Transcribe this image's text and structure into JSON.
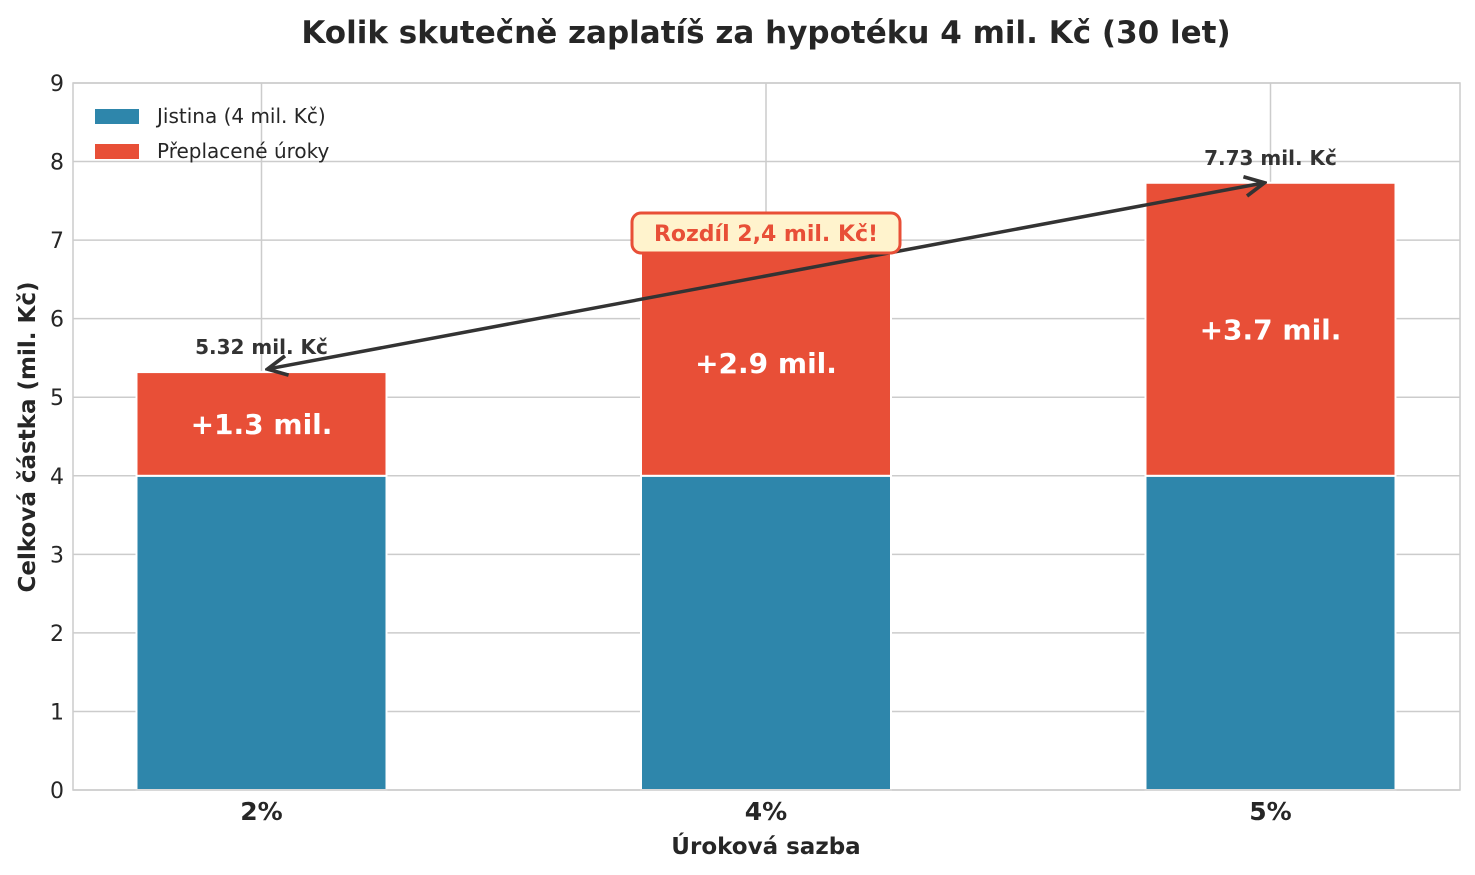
{
  "chart_data": {
    "type": "bar",
    "stacked": true,
    "title": "Kolik skutečně zaplatíš za hypotéku 4 mil. Kč (30 let)",
    "xlabel": "Úroková sazba",
    "ylabel": "Celková částka (mil. Kč)",
    "ylim": [
      0,
      9
    ],
    "yticks": [
      "0",
      "1",
      "2",
      "3",
      "4",
      "5",
      "6",
      "7",
      "8",
      "9"
    ],
    "grid": true,
    "legend_position": "top-left",
    "categories": [
      "2%",
      "4%",
      "5%"
    ],
    "series": [
      {
        "name": "Jistina (4 mil. Kč)",
        "color": "#2e86ab",
        "values": [
          4,
          4,
          4
        ]
      },
      {
        "name": "Přeplacené úroky",
        "color": "#e84f37",
        "values": [
          1.32,
          2.87,
          3.73
        ]
      }
    ],
    "segment_labels": [
      "+1.3 mil.",
      "+2.9 mil.",
      "+3.7 mil."
    ],
    "total_labels": [
      "5.32 mil. Kč",
      "",
      "7.73 mil. Kč"
    ],
    "annotation": {
      "text": "Rozdíl 2,4 mil. Kč!",
      "from_category": "2%",
      "to_category": "5%",
      "text_color": "#e84f37",
      "box_fill": "#fff3cd"
    }
  }
}
